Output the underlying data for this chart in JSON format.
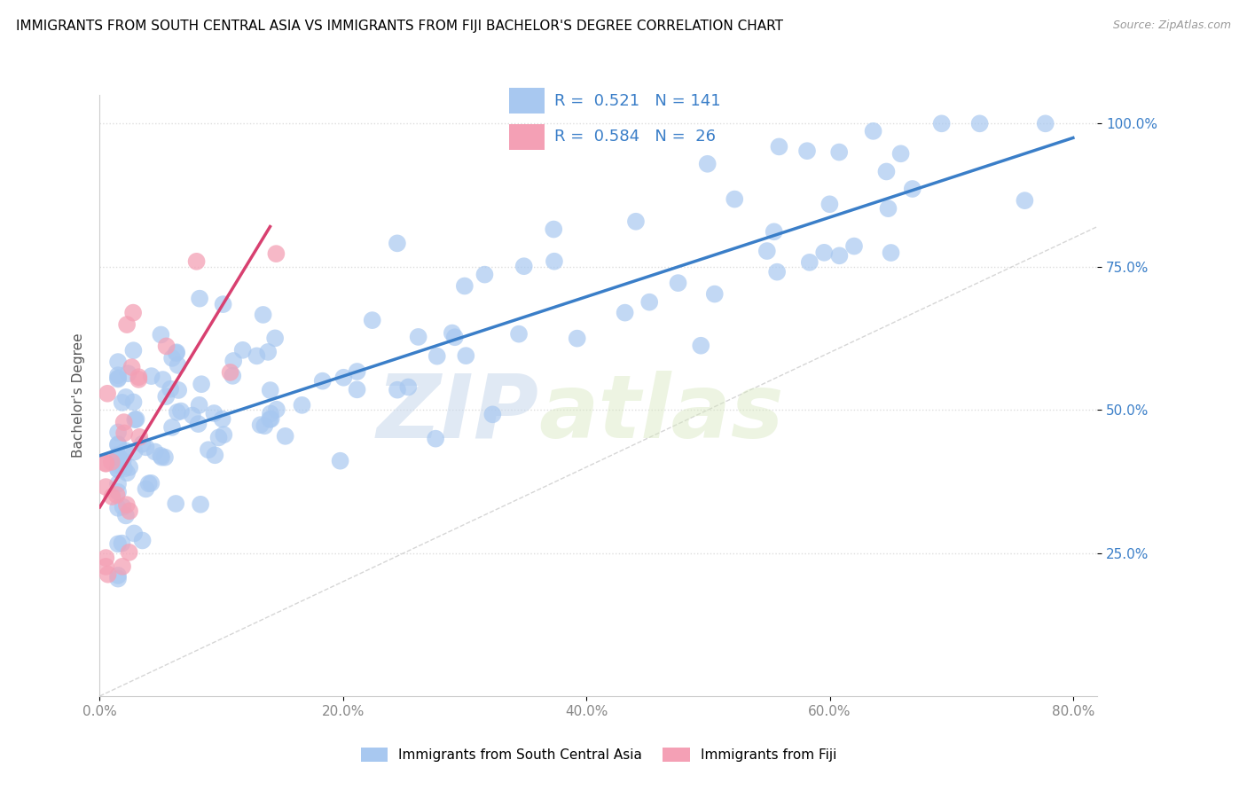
{
  "title": "IMMIGRANTS FROM SOUTH CENTRAL ASIA VS IMMIGRANTS FROM FIJI BACHELOR'S DEGREE CORRELATION CHART",
  "source": "Source: ZipAtlas.com",
  "ylabel": "Bachelor's Degree",
  "color_blue": "#A8C8F0",
  "color_pink": "#F4A0B5",
  "color_blue_line": "#3A7EC8",
  "color_pink_line": "#D84070",
  "color_diagonal": "#CCCCCC",
  "legend_text_color": "#3A7EC8",
  "ytick_color": "#3A7EC8",
  "xtick_color": "#888888",
  "grid_color": "#DDDDDD",
  "blue_line_x0": 0.0,
  "blue_line_y0": 0.42,
  "blue_line_x1": 0.8,
  "blue_line_y1": 0.975,
  "pink_line_x0": 0.0,
  "pink_line_y0": 0.33,
  "pink_line_x1": 0.14,
  "pink_line_y1": 0.82,
  "xlim": [
    0.0,
    0.82
  ],
  "ylim": [
    0.0,
    1.05
  ],
  "xticks": [
    0.0,
    0.2,
    0.4,
    0.6,
    0.8
  ],
  "xtick_labels": [
    "0.0%",
    "20.0%",
    "40.0%",
    "60.0%",
    "80.0%"
  ],
  "yticks": [
    0.25,
    0.5,
    0.75,
    1.0
  ],
  "ytick_labels": [
    "25.0%",
    "50.0%",
    "75.0%",
    "100.0%"
  ],
  "legend_r1": "R =  0.521   N = 141",
  "legend_r2": "R =  0.584   N =  26",
  "watermark_zip": "ZIP",
  "watermark_atlas": "atlas"
}
